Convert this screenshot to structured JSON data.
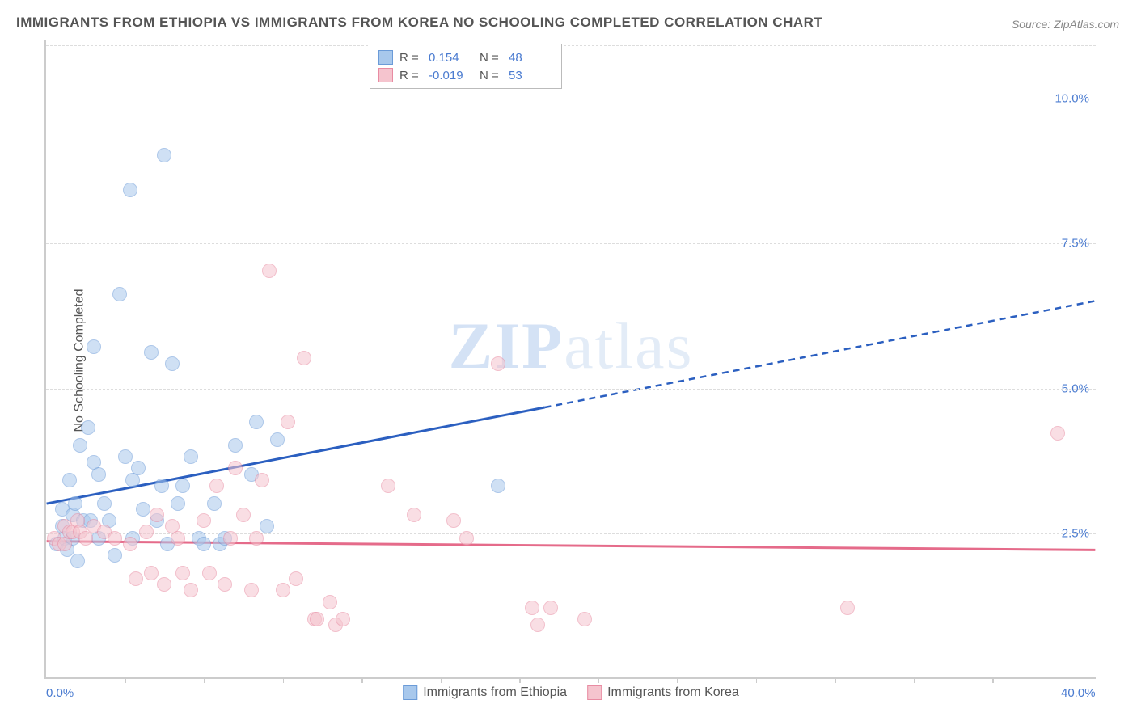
{
  "title": "IMMIGRANTS FROM ETHIOPIA VS IMMIGRANTS FROM KOREA NO SCHOOLING COMPLETED CORRELATION CHART",
  "source": "Source: ZipAtlas.com",
  "y_axis_label": "No Schooling Completed",
  "watermark_bold": "ZIP",
  "watermark_rest": "atlas",
  "chart": {
    "type": "scatter",
    "xlim": [
      0,
      40
    ],
    "ylim": [
      0,
      11
    ],
    "x_ticks": [
      0,
      40
    ],
    "x_tick_labels": [
      "0.0%",
      "40.0%"
    ],
    "x_minor_ticks": [
      3,
      6,
      9,
      12,
      15,
      18,
      21,
      24,
      27,
      30,
      33,
      36
    ],
    "y_grid": [
      2.5,
      5.0,
      7.5,
      10.0
    ],
    "y_tick_labels": [
      "2.5%",
      "5.0%",
      "7.5%",
      "10.0%"
    ],
    "background_color": "#ffffff",
    "grid_color": "#dddddd",
    "axis_color": "#cccccc",
    "tick_label_color": "#4a7bd0",
    "point_radius": 9,
    "point_opacity": 0.55,
    "series": [
      {
        "name": "Immigrants from Ethiopia",
        "color_fill": "#a8c8ec",
        "color_stroke": "#6b9bd8",
        "R": "0.154",
        "N": "48",
        "trend": {
          "x1": 0,
          "y1": 3.0,
          "x2": 40,
          "y2": 6.5,
          "solid_until_x": 19,
          "color": "#2b5fc0",
          "width": 3
        },
        "points": [
          [
            0.4,
            2.3
          ],
          [
            0.6,
            2.6
          ],
          [
            0.6,
            2.9
          ],
          [
            0.7,
            2.4
          ],
          [
            0.8,
            2.2
          ],
          [
            0.9,
            3.4
          ],
          [
            1.0,
            2.4
          ],
          [
            1.0,
            2.8
          ],
          [
            1.1,
            3.0
          ],
          [
            1.2,
            2.0
          ],
          [
            1.3,
            4.0
          ],
          [
            1.4,
            2.7
          ],
          [
            1.6,
            4.3
          ],
          [
            1.7,
            2.7
          ],
          [
            1.8,
            3.7
          ],
          [
            1.8,
            5.7
          ],
          [
            2.0,
            2.4
          ],
          [
            2.0,
            3.5
          ],
          [
            2.2,
            3.0
          ],
          [
            2.4,
            2.7
          ],
          [
            2.6,
            2.1
          ],
          [
            2.8,
            6.6
          ],
          [
            3.0,
            3.8
          ],
          [
            3.2,
            8.4
          ],
          [
            3.3,
            2.4
          ],
          [
            3.3,
            3.4
          ],
          [
            3.5,
            3.6
          ],
          [
            3.7,
            2.9
          ],
          [
            4.0,
            5.6
          ],
          [
            4.2,
            2.7
          ],
          [
            4.4,
            3.3
          ],
          [
            4.5,
            9.0
          ],
          [
            4.6,
            2.3
          ],
          [
            4.8,
            5.4
          ],
          [
            5.0,
            3.0
          ],
          [
            5.2,
            3.3
          ],
          [
            5.5,
            3.8
          ],
          [
            5.8,
            2.4
          ],
          [
            6.0,
            2.3
          ],
          [
            6.4,
            3.0
          ],
          [
            6.6,
            2.3
          ],
          [
            6.8,
            2.4
          ],
          [
            7.2,
            4.0
          ],
          [
            7.8,
            3.5
          ],
          [
            8.0,
            4.4
          ],
          [
            8.4,
            2.6
          ],
          [
            8.8,
            4.1
          ],
          [
            17.2,
            3.3
          ]
        ]
      },
      {
        "name": "Immigrants from Korea",
        "color_fill": "#f5c4ce",
        "color_stroke": "#e88ba2",
        "R": "-0.019",
        "N": "53",
        "trend": {
          "x1": 0,
          "y1": 2.35,
          "x2": 40,
          "y2": 2.2,
          "solid_until_x": 40,
          "color": "#e56b8a",
          "width": 3
        },
        "points": [
          [
            0.3,
            2.4
          ],
          [
            0.5,
            2.3
          ],
          [
            0.7,
            2.6
          ],
          [
            0.7,
            2.3
          ],
          [
            0.9,
            2.5
          ],
          [
            1.0,
            2.5
          ],
          [
            1.2,
            2.7
          ],
          [
            1.3,
            2.5
          ],
          [
            1.5,
            2.4
          ],
          [
            1.8,
            2.6
          ],
          [
            2.2,
            2.5
          ],
          [
            2.6,
            2.4
          ],
          [
            3.2,
            2.3
          ],
          [
            3.4,
            1.7
          ],
          [
            3.8,
            2.5
          ],
          [
            4.0,
            1.8
          ],
          [
            4.2,
            2.8
          ],
          [
            4.5,
            1.6
          ],
          [
            4.8,
            2.6
          ],
          [
            5.0,
            2.4
          ],
          [
            5.2,
            1.8
          ],
          [
            5.5,
            1.5
          ],
          [
            6.0,
            2.7
          ],
          [
            6.2,
            1.8
          ],
          [
            6.5,
            3.3
          ],
          [
            6.8,
            1.6
          ],
          [
            7.0,
            2.4
          ],
          [
            7.2,
            3.6
          ],
          [
            7.5,
            2.8
          ],
          [
            7.8,
            1.5
          ],
          [
            8.0,
            2.4
          ],
          [
            8.2,
            3.4
          ],
          [
            8.5,
            7.0
          ],
          [
            9.0,
            1.5
          ],
          [
            9.2,
            4.4
          ],
          [
            9.5,
            1.7
          ],
          [
            9.8,
            5.5
          ],
          [
            10.2,
            1.0
          ],
          [
            10.3,
            1.0
          ],
          [
            10.8,
            1.3
          ],
          [
            11.0,
            0.9
          ],
          [
            11.3,
            1.0
          ],
          [
            13.0,
            3.3
          ],
          [
            14.0,
            2.8
          ],
          [
            15.5,
            2.7
          ],
          [
            16.0,
            2.4
          ],
          [
            17.2,
            5.4
          ],
          [
            18.5,
            1.2
          ],
          [
            18.7,
            0.9
          ],
          [
            19.2,
            1.2
          ],
          [
            20.5,
            1.0
          ],
          [
            30.5,
            1.2
          ],
          [
            38.5,
            4.2
          ]
        ]
      }
    ]
  },
  "legend_top": {
    "R_label": "R =",
    "N_label": "N ="
  }
}
